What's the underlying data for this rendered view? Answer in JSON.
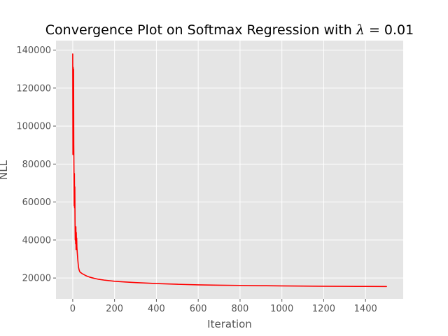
{
  "chart_data": {
    "type": "line",
    "title": {
      "prefix": "Convergence Plot on Softmax Regression with ",
      "symbol": "λ",
      "suffix": " = 0.01"
    },
    "xlabel": "Iteration",
    "ylabel": "NLL",
    "xlim": [
      -80,
      1580
    ],
    "ylim": [
      9000,
      145000
    ],
    "xticks": [
      0,
      200,
      400,
      600,
      800,
      1000,
      1200,
      1400
    ],
    "yticks": [
      20000,
      40000,
      60000,
      80000,
      100000,
      120000,
      140000
    ],
    "xtick_labels": [
      "0",
      "200",
      "400",
      "600",
      "800",
      "1000",
      "1200",
      "1400"
    ],
    "ytick_labels": [
      "20000",
      "40000",
      "60000",
      "80000",
      "100000",
      "120000",
      "140000"
    ],
    "grid": true,
    "series": [
      {
        "color": "#ff0000",
        "x": [
          0,
          1,
          2,
          3,
          4,
          5,
          6,
          7,
          8,
          9,
          10,
          11,
          12,
          13,
          14,
          15,
          16,
          17,
          18,
          19,
          20,
          22,
          24,
          26,
          28,
          30,
          33,
          36,
          40,
          45,
          50,
          60,
          70,
          80,
          100,
          120,
          150,
          200,
          250,
          300,
          400,
          500,
          600,
          700,
          800,
          900,
          1000,
          1100,
          1200,
          1300,
          1400,
          1500
        ],
        "y": [
          138000,
          85000,
          131000,
          86000,
          130000,
          90000,
          76000,
          58000,
          75000,
          57000,
          68000,
          50000,
          40000,
          46000,
          38000,
          47000,
          35000,
          44000,
          38000,
          41000,
          36000,
          33000,
          30000,
          27500,
          25500,
          24500,
          23500,
          23000,
          22700,
          22300,
          22000,
          21400,
          20900,
          20500,
          19900,
          19400,
          18900,
          18300,
          17900,
          17600,
          17100,
          16700,
          16400,
          16200,
          16100,
          15950,
          15850,
          15750,
          15650,
          15600,
          15550,
          15500
        ]
      }
    ]
  },
  "style": {
    "plot_background": "#e5e5e5",
    "grid_color": "#ffffff",
    "tick_color": "#555555"
  }
}
